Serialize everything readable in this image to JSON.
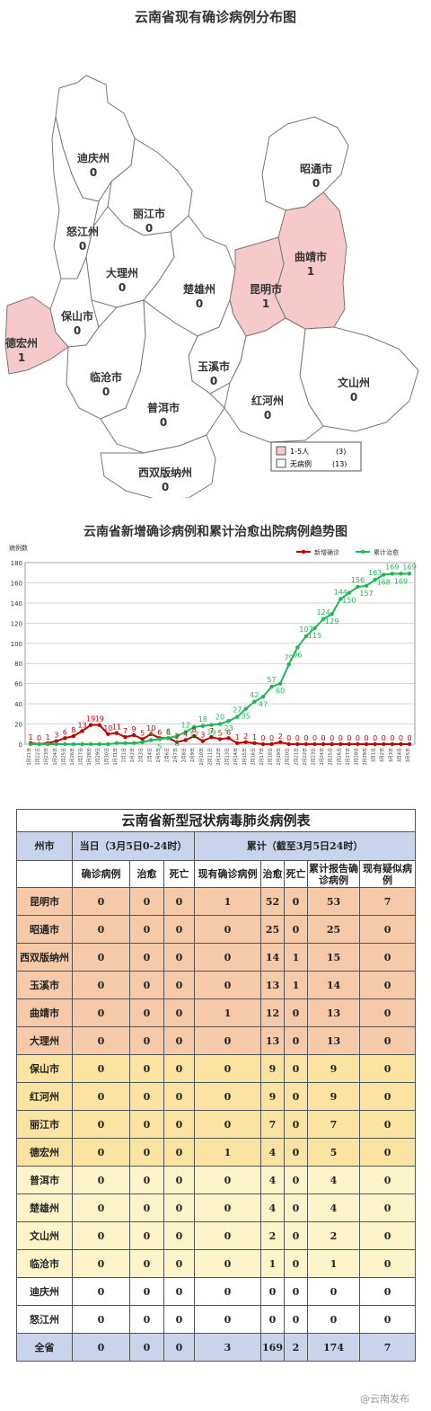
{
  "map": {
    "title": "云南省现有确诊病例分布图",
    "regions": [
      {
        "name": "迪庆州",
        "count": "0",
        "fill": "#ffffff"
      },
      {
        "name": "昭通市",
        "count": "0",
        "fill": "#ffffff"
      },
      {
        "name": "丽江市",
        "count": "0",
        "fill": "#ffffff"
      },
      {
        "name": "怒江州",
        "count": "0",
        "fill": "#ffffff"
      },
      {
        "name": "曲靖市",
        "count": "1",
        "fill": "#f6c9cb"
      },
      {
        "name": "大理州",
        "count": "0",
        "fill": "#ffffff"
      },
      {
        "name": "楚雄州",
        "count": "0",
        "fill": "#ffffff"
      },
      {
        "name": "昆明市",
        "count": "1",
        "fill": "#f6c9cb"
      },
      {
        "name": "保山市",
        "count": "0",
        "fill": "#ffffff"
      },
      {
        "name": "德宏州",
        "count": "1",
        "fill": "#f6c9cb"
      },
      {
        "name": "玉溪市",
        "count": "0",
        "fill": "#ffffff"
      },
      {
        "name": "临沧市",
        "count": "0",
        "fill": "#ffffff"
      },
      {
        "name": "文山州",
        "count": "0",
        "fill": "#ffffff"
      },
      {
        "name": "红河州",
        "count": "0",
        "fill": "#ffffff"
      },
      {
        "name": "普洱市",
        "count": "0",
        "fill": "#ffffff"
      },
      {
        "name": "西双版纳州",
        "count": "0",
        "fill": "#ffffff"
      }
    ],
    "legend": [
      {
        "label": "1-5人",
        "count": "(3)",
        "color": "#f6c9cb"
      },
      {
        "label": "无病例",
        "count": "(13)",
        "color": "#ffffff"
      }
    ]
  },
  "chart_data": {
    "type": "line",
    "title": "云南省新增确诊病例和累计治愈出院病例趋势图",
    "ylabel": "病例数",
    "ylim": [
      0,
      180
    ],
    "yticks": [
      0,
      20,
      40,
      60,
      80,
      100,
      120,
      140,
      160,
      180
    ],
    "grid": true,
    "legend_position": "top-right",
    "categories": [
      "1月21日",
      "1月22日",
      "1月23日",
      "1月24日",
      "1月25日",
      "1月26日",
      "1月27日",
      "1月28日",
      "1月29日",
      "1月30日",
      "1月31日",
      "2月1日",
      "2月2日",
      "2月3日",
      "2月4日",
      "2月5日",
      "2月6日",
      "2月7日",
      "2月8日",
      "2月9日",
      "2月10日",
      "2月11日",
      "2月12日",
      "2月13日",
      "2月14日",
      "2月15日",
      "2月16日",
      "2月17日",
      "2月18日",
      "2月19日",
      "2月20日",
      "2月21日",
      "2月22日",
      "2月23日",
      "2月24日",
      "2月25日",
      "2月26日",
      "2月27日",
      "2月28日",
      "2月29日",
      "3月1日",
      "3月2日",
      "3月3日",
      "3月4日",
      "3月5日"
    ],
    "series": [
      {
        "name": "新增确诊",
        "color": "#c00000",
        "values": [
          1,
          0,
          1,
          3,
          6,
          8,
          13,
          19,
          19,
          10,
          11,
          7,
          9,
          5,
          10,
          6,
          6,
          2,
          4,
          8,
          3,
          7,
          5,
          6,
          1,
          2,
          1,
          0,
          0,
          2,
          0,
          0,
          0,
          0,
          0,
          0,
          0,
          0,
          0,
          0,
          0,
          0,
          0,
          0,
          0
        ]
      },
      {
        "name": "累计治愈",
        "color": "#1db954",
        "values": [
          0,
          0,
          0,
          0,
          0,
          0,
          0,
          0,
          0,
          0,
          1,
          1,
          1,
          2,
          4,
          5,
          6,
          8,
          12,
          17,
          18,
          19,
          20,
          23,
          27,
          35,
          42,
          47,
          57,
          60,
          79,
          96,
          107,
          115,
          124,
          129,
          144,
          150,
          156,
          157,
          163,
          168,
          169,
          169,
          169
        ]
      }
    ],
    "value_labels": {
      "new": [
        "1",
        "0",
        "1",
        "3",
        "6",
        "8",
        "13",
        "19",
        "19",
        "10",
        "11",
        "7",
        "9",
        "5",
        "10",
        "6",
        "6",
        "2",
        "4",
        "8",
        "3",
        "7",
        "5",
        "6",
        "1",
        "2",
        "1",
        "0",
        "0",
        "2",
        "0",
        "0",
        "0",
        "0",
        "0",
        "0",
        "0",
        "0",
        "0",
        "0",
        "0",
        "0",
        "0",
        "0",
        "0"
      ],
      "cured": [
        "",
        "",
        "",
        "",
        "",
        "",
        "",
        "",
        "",
        "",
        "",
        "",
        "",
        "",
        "4",
        "5",
        "6",
        "8",
        "12",
        "17",
        "18",
        "19",
        "20",
        "23",
        "27",
        "35",
        "42",
        "47",
        "57",
        "60",
        "79",
        "96",
        "107",
        "115",
        "124",
        "129",
        "144",
        "150",
        "156",
        "157",
        "163",
        "168",
        "169",
        "169",
        "169"
      ]
    }
  },
  "table": {
    "title": "云南省新型冠状病毒肺炎病例表",
    "h_region": "州市",
    "h_today": "当日（3月5日0-24时）",
    "h_total": "累计（截至3月5日24时）",
    "sub_confirmed": "确诊病例",
    "sub_cured": "治愈",
    "sub_dead": "死亡",
    "sub_current": "现有确诊病例",
    "sub_cured2": "治愈",
    "sub_dead2": "死亡",
    "sub_total": "累计报告确诊病例",
    "sub_suspect": "现有疑似病例",
    "rows": [
      {
        "name": "昆明市",
        "c": "0",
        "cu": "0",
        "d": "0",
        "cur": "1",
        "tcu": "52",
        "td": "0",
        "tot": "53",
        "sus": "7",
        "color": "#f6c9a9"
      },
      {
        "name": "昭通市",
        "c": "0",
        "cu": "0",
        "d": "0",
        "cur": "0",
        "tcu": "25",
        "td": "0",
        "tot": "25",
        "sus": "0",
        "color": "#f6c9a9"
      },
      {
        "name": "西双版纳州",
        "c": "0",
        "cu": "0",
        "d": "0",
        "cur": "0",
        "tcu": "14",
        "td": "1",
        "tot": "15",
        "sus": "0",
        "color": "#f6c9a9"
      },
      {
        "name": "玉溪市",
        "c": "0",
        "cu": "0",
        "d": "0",
        "cur": "0",
        "tcu": "13",
        "td": "1",
        "tot": "14",
        "sus": "0",
        "color": "#f6c9a9"
      },
      {
        "name": "曲靖市",
        "c": "0",
        "cu": "0",
        "d": "0",
        "cur": "1",
        "tcu": "12",
        "td": "0",
        "tot": "13",
        "sus": "0",
        "color": "#f6c9a9"
      },
      {
        "name": "大理州",
        "c": "0",
        "cu": "0",
        "d": "0",
        "cur": "0",
        "tcu": "13",
        "td": "0",
        "tot": "13",
        "sus": "0",
        "color": "#f6c9a9"
      },
      {
        "name": "保山市",
        "c": "0",
        "cu": "0",
        "d": "0",
        "cur": "0",
        "tcu": "9",
        "td": "0",
        "tot": "9",
        "sus": "0",
        "color": "#fbe3a1"
      },
      {
        "name": "红河州",
        "c": "0",
        "cu": "0",
        "d": "0",
        "cur": "0",
        "tcu": "9",
        "td": "0",
        "tot": "9",
        "sus": "0",
        "color": "#fbe3a1"
      },
      {
        "name": "丽江市",
        "c": "0",
        "cu": "0",
        "d": "0",
        "cur": "0",
        "tcu": "7",
        "td": "0",
        "tot": "7",
        "sus": "0",
        "color": "#fbe3a1"
      },
      {
        "name": "德宏州",
        "c": "0",
        "cu": "0",
        "d": "0",
        "cur": "1",
        "tcu": "4",
        "td": "0",
        "tot": "5",
        "sus": "0",
        "color": "#fbe3a1"
      },
      {
        "name": "普洱市",
        "c": "0",
        "cu": "0",
        "d": "0",
        "cur": "0",
        "tcu": "4",
        "td": "0",
        "tot": "4",
        "sus": "0",
        "color": "#fdf5c9"
      },
      {
        "name": "楚雄州",
        "c": "0",
        "cu": "0",
        "d": "0",
        "cur": "0",
        "tcu": "4",
        "td": "0",
        "tot": "4",
        "sus": "0",
        "color": "#fdf5c9"
      },
      {
        "name": "文山州",
        "c": "0",
        "cu": "0",
        "d": "0",
        "cur": "0",
        "tcu": "2",
        "td": "0",
        "tot": "2",
        "sus": "0",
        "color": "#fdf5c9"
      },
      {
        "name": "临沧市",
        "c": "0",
        "cu": "0",
        "d": "0",
        "cur": "0",
        "tcu": "1",
        "td": "0",
        "tot": "1",
        "sus": "0",
        "color": "#fdf5c9"
      },
      {
        "name": "迪庆州",
        "c": "0",
        "cu": "0",
        "d": "0",
        "cur": "0",
        "tcu": "0",
        "td": "0",
        "tot": "0",
        "sus": "0",
        "color": "#ffffff"
      },
      {
        "name": "怒江州",
        "c": "0",
        "cu": "0",
        "d": "0",
        "cur": "0",
        "tcu": "0",
        "td": "0",
        "tot": "0",
        "sus": "0",
        "color": "#ffffff"
      }
    ],
    "total": {
      "name": "全省",
      "c": "0",
      "cu": "0",
      "d": "0",
      "cur": "3",
      "tcu": "169",
      "td": "2",
      "tot": "174",
      "sus": "7",
      "color": "#c9d4ec"
    }
  },
  "watermark": "@云南发布"
}
